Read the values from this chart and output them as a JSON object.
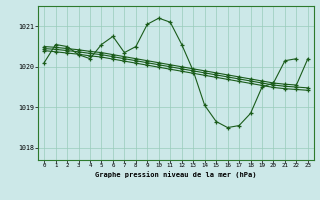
{
  "title": "Graphe pression niveau de la mer (hPa)",
  "bg_color": "#cce8e8",
  "grid_color": "#99ccbb",
  "line_color": "#1a5c1a",
  "xlim": [
    -0.5,
    23.5
  ],
  "ylim": [
    1017.7,
    1021.5
  ],
  "yticks": [
    1018,
    1019,
    1020,
    1021
  ],
  "xticks": [
    0,
    1,
    2,
    3,
    4,
    5,
    6,
    7,
    8,
    9,
    10,
    11,
    12,
    13,
    14,
    15,
    16,
    17,
    18,
    19,
    20,
    21,
    22,
    23
  ],
  "line1_x": [
    0,
    1,
    2,
    3,
    4,
    5,
    6,
    7,
    8,
    9,
    10,
    11,
    12,
    13,
    14,
    15,
    16,
    17,
    18,
    19,
    20,
    21,
    22
  ],
  "line1_y": [
    1020.1,
    1020.55,
    1020.5,
    1020.3,
    1020.2,
    1020.55,
    1020.75,
    1020.35,
    1020.5,
    1021.05,
    1021.2,
    1021.1,
    1020.55,
    1019.9,
    1019.05,
    1018.65,
    1018.5,
    1018.55,
    1018.85,
    1019.5,
    1019.6,
    1020.15,
    1020.2
  ],
  "line2_x": [
    0,
    1,
    2,
    3,
    4,
    5,
    6,
    7,
    8,
    9,
    10,
    11,
    12,
    13,
    14,
    15,
    16,
    17,
    18,
    19,
    20,
    21,
    22,
    23
  ],
  "line2_y": [
    1020.5,
    1020.48,
    1020.45,
    1020.42,
    1020.38,
    1020.35,
    1020.3,
    1020.25,
    1020.2,
    1020.15,
    1020.1,
    1020.05,
    1020.0,
    1019.95,
    1019.9,
    1019.85,
    1019.8,
    1019.75,
    1019.7,
    1019.65,
    1019.6,
    1019.57,
    1019.55,
    1020.2
  ],
  "line3_x": [
    0,
    1,
    2,
    3,
    4,
    5,
    6,
    7,
    8,
    9,
    10,
    11,
    12,
    13,
    14,
    15,
    16,
    17,
    18,
    19,
    20,
    21,
    22,
    23
  ],
  "line3_y": [
    1020.45,
    1020.43,
    1020.4,
    1020.37,
    1020.33,
    1020.3,
    1020.25,
    1020.2,
    1020.15,
    1020.1,
    1020.05,
    1020.0,
    1019.95,
    1019.9,
    1019.85,
    1019.8,
    1019.75,
    1019.7,
    1019.65,
    1019.6,
    1019.55,
    1019.52,
    1019.5,
    1019.48
  ],
  "line4_x": [
    0,
    1,
    2,
    3,
    4,
    5,
    6,
    7,
    8,
    9,
    10,
    11,
    12,
    13,
    14,
    15,
    16,
    17,
    18,
    19,
    20,
    21,
    22,
    23
  ],
  "line4_y": [
    1020.4,
    1020.37,
    1020.34,
    1020.31,
    1020.27,
    1020.24,
    1020.19,
    1020.14,
    1020.09,
    1020.04,
    1019.99,
    1019.94,
    1019.89,
    1019.84,
    1019.79,
    1019.74,
    1019.69,
    1019.64,
    1019.59,
    1019.54,
    1019.49,
    1019.46,
    1019.44,
    1019.42
  ]
}
